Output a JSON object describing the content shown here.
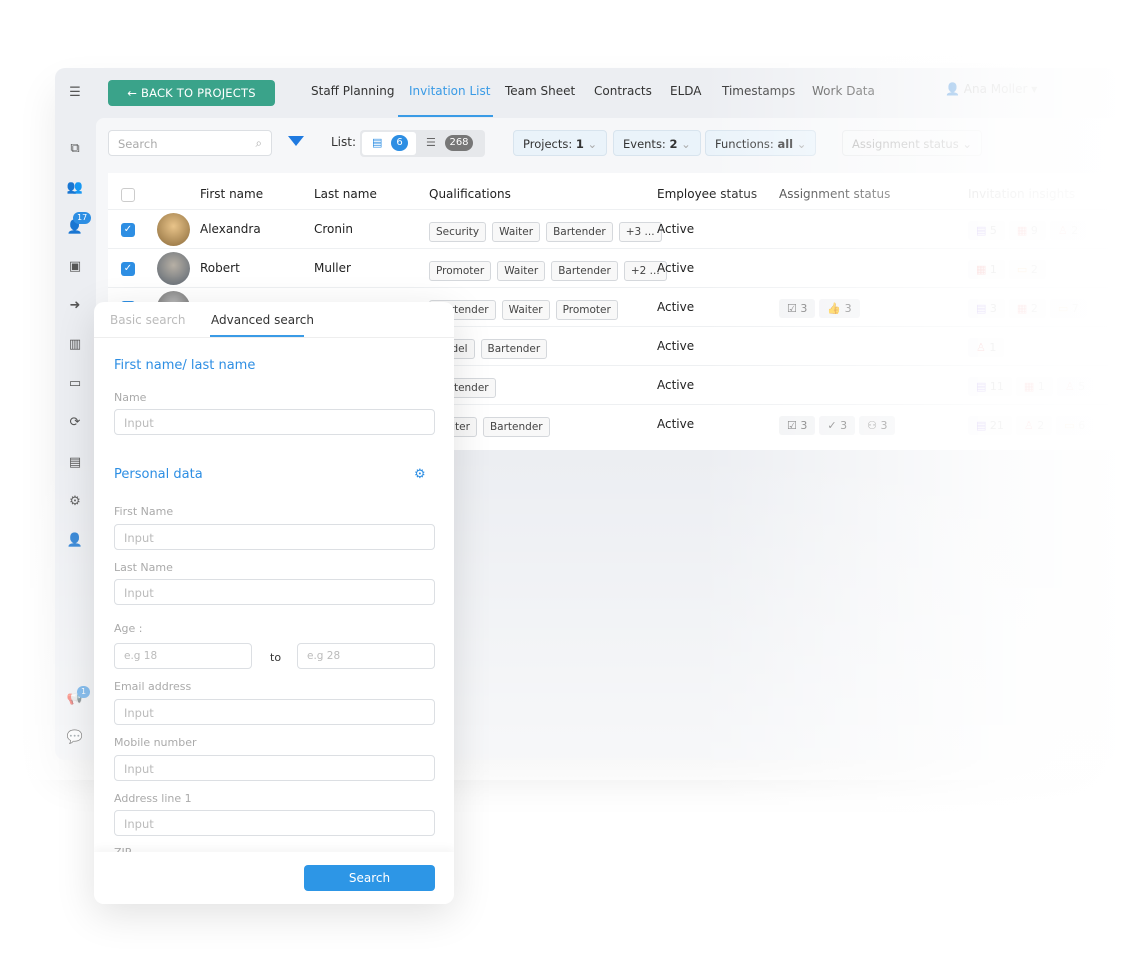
{
  "nav": {
    "back": "BACK TO PROJECTS",
    "tabs": [
      "Staff Planning",
      "Invitation List",
      "Team Sheet",
      "Contracts",
      "ELDA",
      "Timestamps",
      "Work Data"
    ],
    "active": "Invitation List",
    "user": "Ana Moller"
  },
  "sidebar": {
    "badge_staff": "17",
    "badge_announce": "1"
  },
  "toolbar": {
    "search_placeholder": "Search",
    "list_label": "List:",
    "selected_count": "6",
    "total_count": "268",
    "projects": "Projects:",
    "projects_val": "1",
    "events": "Events:",
    "events_val": "2",
    "functions": "Functions:",
    "functions_val": "all",
    "assignment_status": "Assignment status"
  },
  "table": {
    "headers": [
      "First name",
      "Last name",
      "Qualifications",
      "Employee status",
      "Assignment status",
      "Invitation insights"
    ],
    "rows": [
      {
        "first": "Alexandra",
        "last": "Cronin",
        "quals": [
          "Security",
          "Waiter",
          "Bartender",
          "+3 ..."
        ],
        "status": "Active",
        "assign": [],
        "insights": [
          "5",
          "9",
          "2"
        ]
      },
      {
        "first": "Robert",
        "last": "Muller",
        "quals": [
          "Promoter",
          "Waiter",
          "Bartender",
          "+2 ..."
        ],
        "status": "Active",
        "assign": [],
        "insights": [
          "1",
          "2"
        ]
      },
      {
        "first": "",
        "last": "",
        "quals": [
          "Bartender",
          "Waiter",
          "Promoter"
        ],
        "status": "Active",
        "assign": [
          "3",
          "3"
        ],
        "insights": [
          "3",
          "2",
          "7"
        ]
      },
      {
        "first": "",
        "last": "",
        "quals": [
          "Model",
          "Bartender"
        ],
        "status": "Active",
        "assign": [],
        "insights": [
          "1"
        ]
      },
      {
        "first": "",
        "last": "",
        "quals": [
          "Bartender"
        ],
        "status": "Active",
        "assign": [],
        "insights": [
          "11",
          "1",
          "5"
        ]
      },
      {
        "first": "",
        "last": "",
        "quals": [
          "Waiter",
          "Bartender"
        ],
        "status": "Active",
        "assign": [
          "3",
          "3",
          "3"
        ],
        "insights": [
          "21",
          "2",
          "6"
        ]
      }
    ]
  },
  "panel": {
    "tab_basic": "Basic search",
    "tab_advanced": "Advanced search",
    "sec_name": "First name/ last name",
    "name_label": "Name",
    "sec_personal": "Personal data",
    "first_label": "First Name",
    "last_label": "Last Name",
    "age_label": "Age :",
    "age_from": "e.g 18",
    "age_to_word": "to",
    "age_to": "e.g 28",
    "email_label": "Email address",
    "mobile_label": "Mobile number",
    "address_label": "Address line 1",
    "zip_label": "ZIP",
    "input_placeholder": "Input",
    "search_button": "Search"
  },
  "colors": {
    "accent": "#2d8ee3",
    "back_button": "#3aa38a"
  }
}
